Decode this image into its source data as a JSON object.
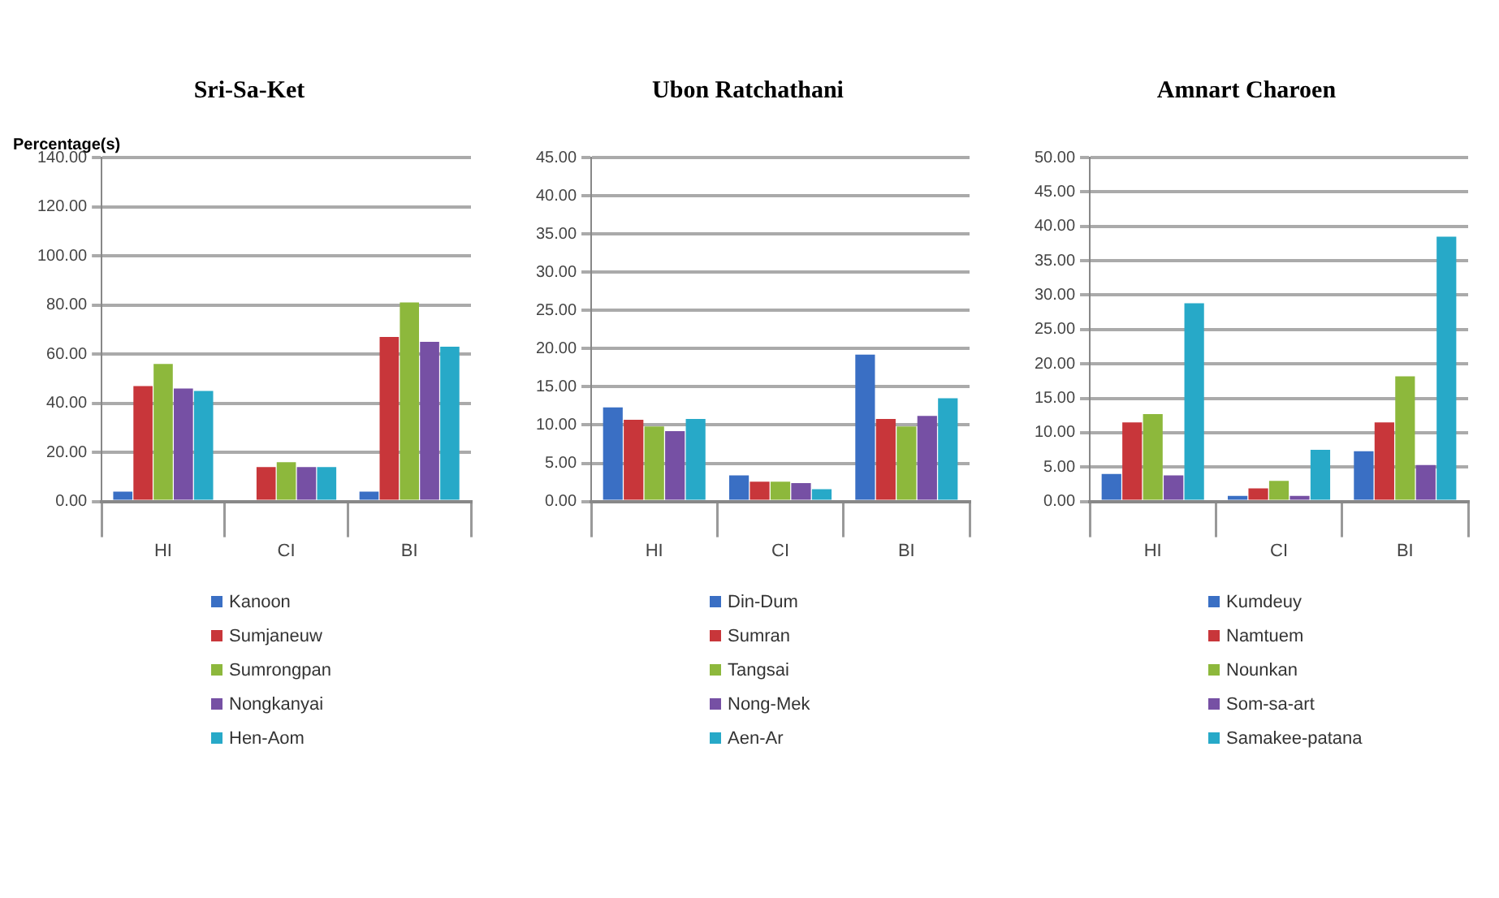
{
  "chart_data": [
    {
      "type": "bar",
      "title": "Sri-Sa-Ket",
      "ylabel": "Percentage(s)",
      "categories": [
        "HI",
        "CI",
        "BI"
      ],
      "ylim": [
        0,
        140
      ],
      "yticks": [
        {
          "value": 0,
          "label": "0.00"
        },
        {
          "value": 20,
          "label": "20.00"
        },
        {
          "value": 40,
          "label": "40.00"
        },
        {
          "value": 60,
          "label": "60.00"
        },
        {
          "value": 80,
          "label": "80.00"
        },
        {
          "value": 100,
          "label": "100.00"
        },
        {
          "value": 120,
          "label": "120.00"
        },
        {
          "value": 140,
          "label": "140.00"
        }
      ],
      "grid": "y",
      "legend": "bottom",
      "series": [
        {
          "name": "Kanoon",
          "color": "#3a6fc4",
          "values": [
            4,
            null,
            4
          ]
        },
        {
          "name": "Sumjaneuw",
          "color": "#c8363a",
          "values": [
            47,
            14,
            67
          ]
        },
        {
          "name": "Sumrongpan",
          "color": "#8db83c",
          "values": [
            56,
            16,
            81
          ]
        },
        {
          "name": "Nongkanyai",
          "color": "#7650a4",
          "values": [
            46,
            14,
            65
          ]
        },
        {
          "name": "Hen-Aom",
          "color": "#27a9c8",
          "values": [
            45,
            14,
            63
          ]
        }
      ]
    },
    {
      "type": "bar",
      "title": "Ubon Ratchathani",
      "categories": [
        "HI",
        "CI",
        "BI"
      ],
      "ylim": [
        0,
        45
      ],
      "yticks": [
        {
          "value": 0,
          "label": "0.00"
        },
        {
          "value": 5,
          "label": "5.00"
        },
        {
          "value": 10,
          "label": "10.00"
        },
        {
          "value": 15,
          "label": "15.00"
        },
        {
          "value": 20,
          "label": "20.00"
        },
        {
          "value": 25,
          "label": "25.00"
        },
        {
          "value": 30,
          "label": "30.00"
        },
        {
          "value": 35,
          "label": "35.00"
        },
        {
          "value": 40,
          "label": "40.00"
        },
        {
          "value": 45,
          "label": "45.00"
        }
      ],
      "grid": "y",
      "legend": "bottom",
      "series": [
        {
          "name": "Din-Dum",
          "color": "#3a6fc4",
          "values": [
            12.3,
            3.4,
            19.2
          ]
        },
        {
          "name": "Sumran",
          "color": "#c8363a",
          "values": [
            10.7,
            2.6,
            10.8
          ]
        },
        {
          "name": "Tangsai",
          "color": "#8db83c",
          "values": [
            9.8,
            2.6,
            9.8
          ]
        },
        {
          "name": "Nong-Mek",
          "color": "#7650a4",
          "values": [
            9.2,
            2.4,
            11.2
          ]
        },
        {
          "name": "Aen-Ar",
          "color": "#27a9c8",
          "values": [
            10.8,
            1.6,
            13.5
          ]
        }
      ]
    },
    {
      "type": "bar",
      "title": "Amnart Charoen",
      "categories": [
        "HI",
        "CI",
        "BI"
      ],
      "ylim": [
        0,
        50
      ],
      "yticks": [
        {
          "value": 0,
          "label": "0.00"
        },
        {
          "value": 5,
          "label": "5.00"
        },
        {
          "value": 10,
          "label": "10.00"
        },
        {
          "value": 15,
          "label": "15.00"
        },
        {
          "value": 20,
          "label": "20.00"
        },
        {
          "value": 25,
          "label": "25.00"
        },
        {
          "value": 30,
          "label": "30.00"
        },
        {
          "value": 35,
          "label": "35.00"
        },
        {
          "value": 40,
          "label": "40.00"
        },
        {
          "value": 45,
          "label": "45.00"
        },
        {
          "value": 50,
          "label": "50.00"
        }
      ],
      "grid": "y",
      "legend": "bottom",
      "series": [
        {
          "name": "Kumdeuy",
          "color": "#3a6fc4",
          "values": [
            4.0,
            0.8,
            7.3
          ]
        },
        {
          "name": "Namtuem",
          "color": "#c8363a",
          "values": [
            11.5,
            1.9,
            11.5
          ]
        },
        {
          "name": "Nounkan",
          "color": "#8db83c",
          "values": [
            12.7,
            3.0,
            18.2
          ]
        },
        {
          "name": "Som-sa-art",
          "color": "#7650a4",
          "values": [
            3.8,
            0.8,
            5.3
          ]
        },
        {
          "name": "Samakee-patana",
          "color": "#27a9c8",
          "values": [
            28.8,
            7.5,
            38.5
          ]
        }
      ]
    }
  ]
}
